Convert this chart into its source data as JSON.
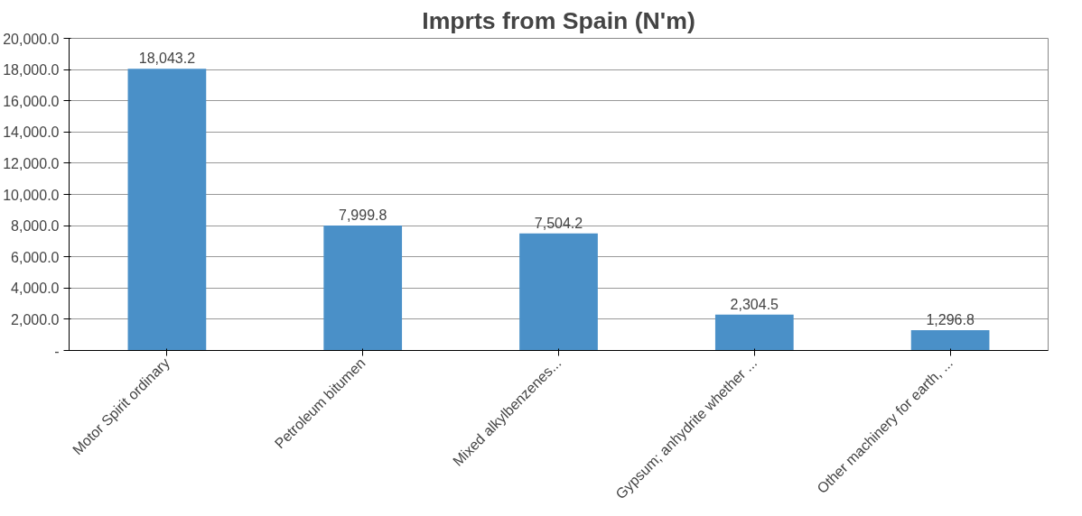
{
  "chart_data": {
    "type": "bar",
    "title": "Imprts from Spain (N'm)",
    "categories": [
      "Motor Spirit ordinary",
      "Petroleum bitumen",
      "Mixed alkylbenzenes...",
      "Gypsum; anhydrite whether ...",
      "Other machinery for earth, ..."
    ],
    "values": [
      18043.2,
      7999.8,
      7504.2,
      2304.5,
      1296.8
    ],
    "value_labels": [
      "18,043.2",
      "7,999.8",
      "7,504.2",
      "2,304.5",
      "1,296.8"
    ],
    "color": "#4a90c8",
    "ylim": [
      0,
      20000
    ],
    "yticks": [
      {
        "value": 0,
        "label": "-"
      },
      {
        "value": 2000,
        "label": "2,000.0"
      },
      {
        "value": 4000,
        "label": "4,000.0"
      },
      {
        "value": 6000,
        "label": "6,000.0"
      },
      {
        "value": 8000,
        "label": "8,000.0"
      },
      {
        "value": 10000,
        "label": "10,000.0"
      },
      {
        "value": 12000,
        "label": "12,000.0"
      },
      {
        "value": 14000,
        "label": "14,000.0"
      },
      {
        "value": 16000,
        "label": "16,000.0"
      },
      {
        "value": 18000,
        "label": "18,000.0"
      },
      {
        "value": 20000,
        "label": "20,000.0"
      }
    ],
    "grid": "y"
  }
}
